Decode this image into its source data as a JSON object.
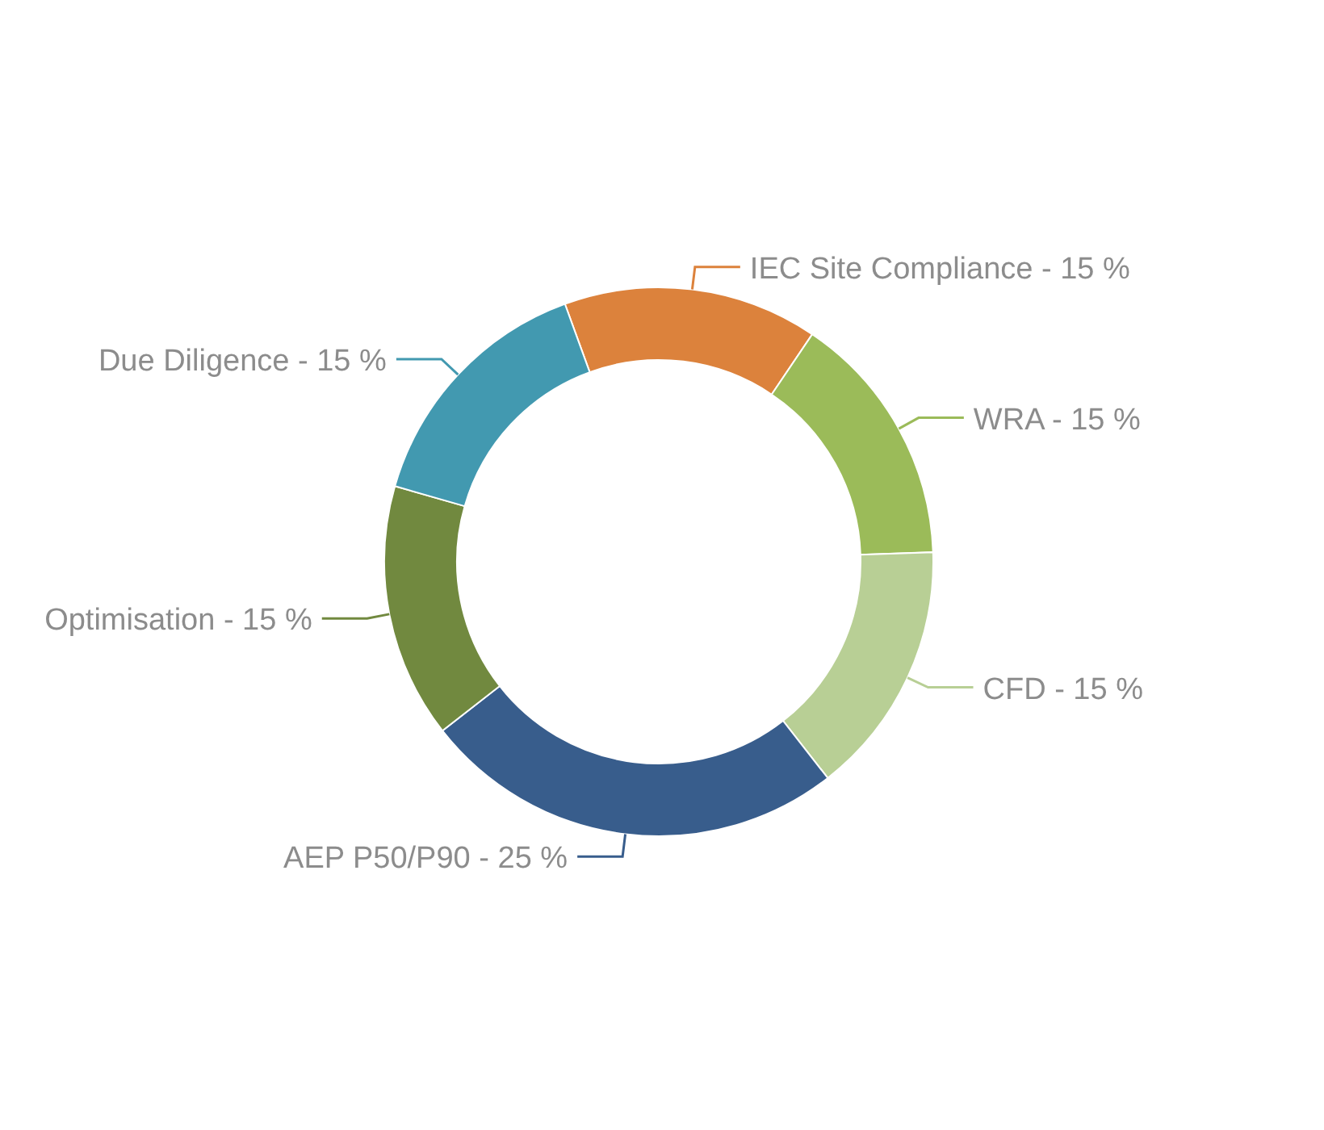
{
  "chart_data": {
    "type": "donut",
    "categories": [
      "IEC Site Compliance",
      "WRA",
      "CFD",
      "AEP P50/P90",
      "Optimisation",
      "Due Diligence"
    ],
    "values": [
      15,
      15,
      15,
      25,
      15,
      15
    ],
    "value_labels": [
      "15 %",
      "15 %",
      "15 %",
      "25 %",
      "15 %",
      "15 %"
    ],
    "colors": [
      "#dc823c",
      "#9bbb59",
      "#b8cf95",
      "#385d8c",
      "#71893f",
      "#4299b0"
    ],
    "legend": false
  }
}
